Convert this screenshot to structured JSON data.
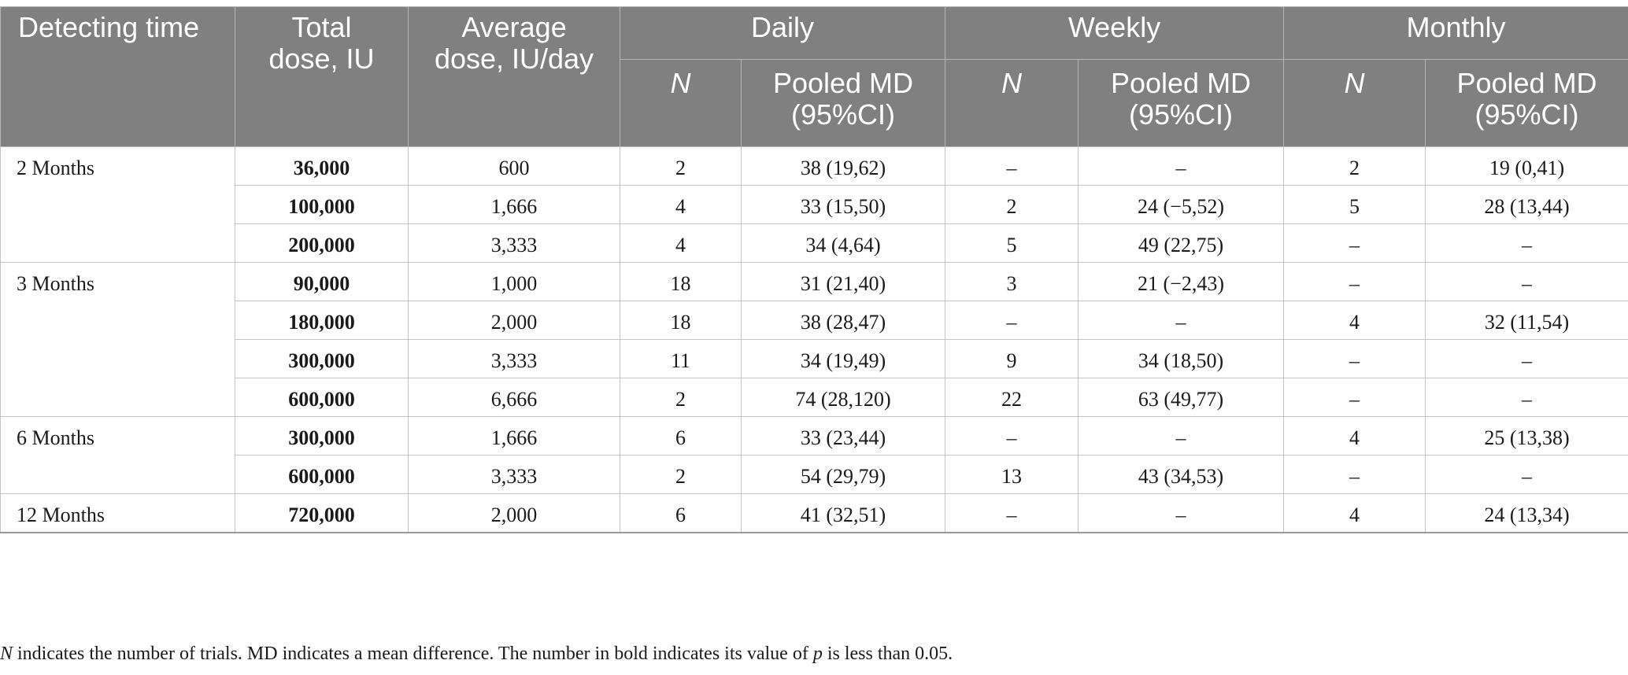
{
  "headers": {
    "detecting_time": "Detecting time",
    "total_dose_line1": "Total",
    "total_dose_line2": "dose, IU",
    "average_dose_line1": "Average",
    "average_dose_line2": "dose, IU/day",
    "daily": "Daily",
    "weekly": "Weekly",
    "monthly": "Monthly",
    "n": "N",
    "pooled_md_line1": "Pooled MD",
    "pooled_md_line2": "(95%CI)"
  },
  "groups": [
    {
      "time": "2 Months",
      "rows": [
        {
          "total": "36,000",
          "avg": "600",
          "daily_n": "2",
          "daily_md": "38 (19,62)",
          "weekly_n": "–",
          "weekly_md": "–",
          "monthly_n": "2",
          "monthly_md": "19 (0,41)"
        },
        {
          "total": "100,000",
          "avg": "1,666",
          "daily_n": "4",
          "daily_md": "33 (15,50)",
          "weekly_n": "2",
          "weekly_md": "24 (−5,52)",
          "monthly_n": "5",
          "monthly_md": "28 (13,44)"
        },
        {
          "total": "200,000",
          "avg": "3,333",
          "daily_n": "4",
          "daily_md": "34 (4,64)",
          "weekly_n": "5",
          "weekly_md": "49 (22,75)",
          "monthly_n": "–",
          "monthly_md": "–"
        }
      ]
    },
    {
      "time": "3 Months",
      "rows": [
        {
          "total": "90,000",
          "avg": "1,000",
          "daily_n": "18",
          "daily_md": "31 (21,40)",
          "weekly_n": "3",
          "weekly_md": "21 (−2,43)",
          "monthly_n": "–",
          "monthly_md": "–"
        },
        {
          "total": "180,000",
          "avg": "2,000",
          "daily_n": "18",
          "daily_md": "38 (28,47)",
          "weekly_n": "–",
          "weekly_md": "–",
          "monthly_n": "4",
          "monthly_md": "32 (11,54)"
        },
        {
          "total": "300,000",
          "avg": "3,333",
          "daily_n": "11",
          "daily_md": "34 (19,49)",
          "weekly_n": "9",
          "weekly_md": "34 (18,50)",
          "monthly_n": "–",
          "monthly_md": "–"
        },
        {
          "total": "600,000",
          "avg": "6,666",
          "daily_n": "2",
          "daily_md": "74 (28,120)",
          "weekly_n": "22",
          "weekly_md": "63 (49,77)",
          "monthly_n": "–",
          "monthly_md": "–"
        }
      ]
    },
    {
      "time": "6 Months",
      "rows": [
        {
          "total": "300,000",
          "avg": "1,666",
          "daily_n": "6",
          "daily_md": "33 (23,44)",
          "weekly_n": "–",
          "weekly_md": "–",
          "monthly_n": "4",
          "monthly_md": "25 (13,38)"
        },
        {
          "total": "600,000",
          "avg": "3,333",
          "daily_n": "2",
          "daily_md": "54 (29,79)",
          "weekly_n": "13",
          "weekly_md": "43 (34,53)",
          "monthly_n": "–",
          "monthly_md": "–"
        }
      ]
    },
    {
      "time": "12 Months",
      "rows": [
        {
          "total": "720,000",
          "avg": "2,000",
          "daily_n": "6",
          "daily_md": "41 (32,51)",
          "weekly_n": "–",
          "weekly_md": "–",
          "monthly_n": "4",
          "monthly_md": "24 (13,34)"
        }
      ]
    }
  ],
  "footnote": {
    "n_symbol": "N",
    "part1": " indicates the number of trials. MD indicates a mean difference. The number in bold indicates its value of ",
    "p_symbol": "p",
    "part2": " is less than 0.05."
  },
  "colors": {
    "header_bg": "#808080",
    "header_text": "#ffffff",
    "grid": "#c4c4c4"
  }
}
